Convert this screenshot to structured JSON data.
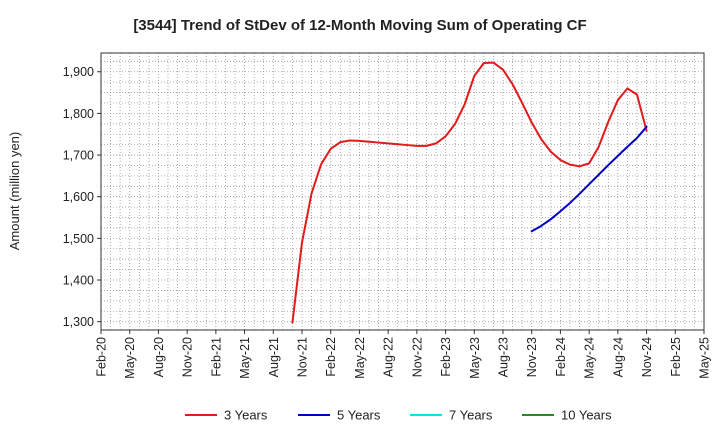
{
  "chart_data": {
    "type": "line",
    "title": "[3544]  Trend of StDev of 12-Month Moving Sum of Operating CF",
    "xlabel": "",
    "ylabel": "Amount (million yen)",
    "ylim": [
      1280,
      1945
    ],
    "yticks": [
      1300,
      1400,
      1500,
      1600,
      1700,
      1800,
      1900
    ],
    "ytick_labels": [
      "1,300",
      "1,400",
      "1,500",
      "1,600",
      "1,700",
      "1,800",
      "1,900"
    ],
    "xlim": [
      "2020-02",
      "2025-05"
    ],
    "xtick_labels": [
      "Feb-20",
      "May-20",
      "Aug-20",
      "Nov-20",
      "Feb-21",
      "May-21",
      "Aug-21",
      "Nov-21",
      "Feb-22",
      "May-22",
      "Aug-22",
      "Nov-22",
      "Feb-23",
      "May-23",
      "Aug-23",
      "Nov-23",
      "Feb-24",
      "May-24",
      "Aug-24",
      "Nov-24",
      "Feb-25",
      "May-25"
    ],
    "grid": true,
    "legend_position": "bottom",
    "series": [
      {
        "name": "3 Years",
        "color": "#e31a1c",
        "x": [
          "2021-10",
          "2021-11",
          "2021-12",
          "2022-01",
          "2022-02",
          "2022-03",
          "2022-04",
          "2022-05",
          "2022-06",
          "2022-07",
          "2022-08",
          "2022-09",
          "2022-10",
          "2022-11",
          "2022-12",
          "2023-01",
          "2023-02",
          "2023-03",
          "2023-04",
          "2023-05",
          "2023-06",
          "2023-07",
          "2023-08",
          "2023-09",
          "2023-10",
          "2023-11",
          "2023-12",
          "2024-01",
          "2024-02",
          "2024-03",
          "2024-04",
          "2024-05",
          "2024-06",
          "2024-07",
          "2024-08",
          "2024-09",
          "2024-10",
          "2024-11"
        ],
        "y": [
          1298,
          1490,
          1608,
          1678,
          1715,
          1731,
          1735,
          1734,
          1732,
          1730,
          1728,
          1726,
          1724,
          1722,
          1722,
          1728,
          1745,
          1775,
          1822,
          1890,
          1921,
          1922,
          1905,
          1870,
          1825,
          1778,
          1738,
          1708,
          1688,
          1677,
          1673,
          1680,
          1720,
          1780,
          1832,
          1860,
          1845,
          1758
        ]
      },
      {
        "name": "5 Years",
        "color": "#0000cc",
        "x": [
          "2023-11",
          "2023-12",
          "2024-01",
          "2024-02",
          "2024-03",
          "2024-04",
          "2024-05",
          "2024-06",
          "2024-07",
          "2024-08",
          "2024-09",
          "2024-10",
          "2024-11"
        ],
        "y": [
          1517,
          1530,
          1546,
          1565,
          1585,
          1607,
          1630,
          1653,
          1676,
          1698,
          1720,
          1741,
          1768
        ]
      },
      {
        "name": "7 Years",
        "color": "#00e5ee",
        "x": [],
        "y": []
      },
      {
        "name": "10 Years",
        "color": "#228b22",
        "x": [],
        "y": []
      }
    ]
  }
}
